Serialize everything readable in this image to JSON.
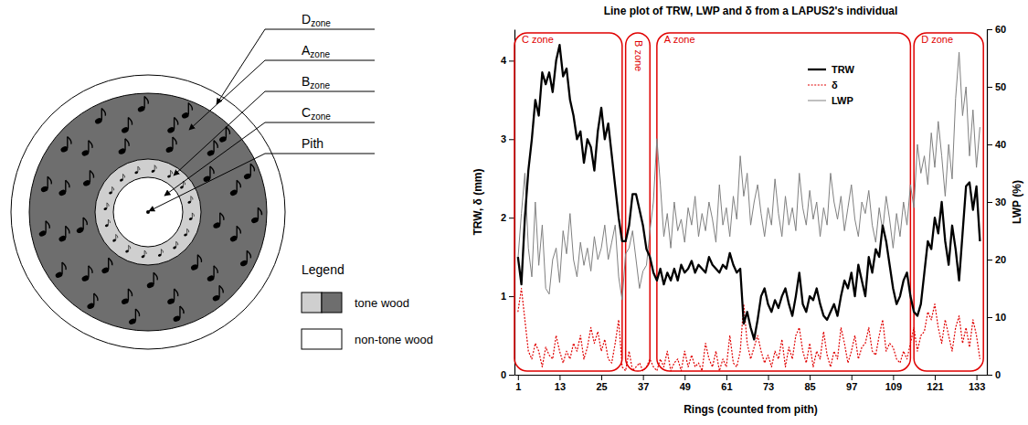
{
  "diagram": {
    "labels": [
      {
        "text": "D",
        "subscript": "zone"
      },
      {
        "text": "A",
        "subscript": "zone"
      },
      {
        "text": "B",
        "subscript": "zone"
      },
      {
        "text": "C",
        "subscript": "zone"
      },
      {
        "text": "Pith"
      }
    ],
    "legend": {
      "title": "Legend",
      "items": [
        "tone wood",
        "non-tone wood"
      ]
    }
  },
  "chart_data": {
    "type": "line",
    "title": "Line plot of TRW, LWP and δ from a LAPUS2's individual",
    "xlabel": "Rings (counted from pith)",
    "ylabel": "TRW, δ (mm)",
    "y2label": "LWP (%)",
    "xlim": [
      0,
      136
    ],
    "xticks": [
      1,
      13,
      25,
      37,
      49,
      61,
      73,
      85,
      97,
      109,
      121,
      133
    ],
    "ylim": [
      0,
      4.4
    ],
    "yticks": [
      0,
      1,
      2,
      3,
      4
    ],
    "y2lim": [
      0,
      60
    ],
    "y2ticks": [
      0,
      10,
      20,
      30,
      40,
      50,
      60
    ],
    "legend": "top-right",
    "annotations": [
      {
        "label": "C zone",
        "from": 0,
        "to": 31
      },
      {
        "label": "B zone",
        "from": 32,
        "to": 39
      },
      {
        "label": "A zone",
        "from": 41,
        "to": 114
      },
      {
        "label": "D zone",
        "from": 115,
        "to": 135
      }
    ],
    "x": [
      1,
      2,
      3,
      4,
      5,
      6,
      7,
      8,
      9,
      10,
      11,
      12,
      13,
      14,
      15,
      16,
      17,
      18,
      19,
      20,
      21,
      22,
      23,
      24,
      25,
      26,
      27,
      28,
      29,
      30,
      31,
      32,
      33,
      34,
      35,
      36,
      37,
      38,
      39,
      40,
      41,
      42,
      43,
      44,
      45,
      46,
      47,
      48,
      49,
      50,
      51,
      52,
      53,
      54,
      55,
      56,
      57,
      58,
      59,
      60,
      61,
      62,
      63,
      64,
      65,
      66,
      67,
      68,
      69,
      70,
      71,
      72,
      73,
      74,
      75,
      76,
      77,
      78,
      79,
      80,
      81,
      82,
      83,
      84,
      85,
      86,
      87,
      88,
      89,
      90,
      91,
      92,
      93,
      94,
      95,
      96,
      97,
      98,
      99,
      100,
      101,
      102,
      103,
      104,
      105,
      106,
      107,
      108,
      109,
      110,
      111,
      112,
      113,
      114,
      115,
      116,
      117,
      118,
      119,
      120,
      121,
      122,
      123,
      124,
      125,
      126,
      127,
      128,
      129,
      130,
      131,
      132,
      133,
      134
    ],
    "series": [
      {
        "name": "TRW",
        "color": "#000000",
        "line_style": "thick",
        "values": [
          1.5,
          1.15,
          2.0,
          2.6,
          3.0,
          3.5,
          3.3,
          3.85,
          3.7,
          3.85,
          3.6,
          4.0,
          4.2,
          3.8,
          3.9,
          3.5,
          3.3,
          3.0,
          3.1,
          2.7,
          3.0,
          2.9,
          2.6,
          3.1,
          3.4,
          3.0,
          3.2,
          2.8,
          2.4,
          2.0,
          1.7,
          1.7,
          1.9,
          2.3,
          2.3,
          2.1,
          1.9,
          1.6,
          1.5,
          1.3,
          1.2,
          1.35,
          1.15,
          1.3,
          1.2,
          1.35,
          1.2,
          1.4,
          1.3,
          1.35,
          1.45,
          1.3,
          1.4,
          1.35,
          1.3,
          1.5,
          1.4,
          1.35,
          1.3,
          1.4,
          1.35,
          1.55,
          1.4,
          1.3,
          1.35,
          0.65,
          0.8,
          0.6,
          0.45,
          0.7,
          1.0,
          1.1,
          0.9,
          0.8,
          0.95,
          0.85,
          1.0,
          1.1,
          0.9,
          0.75,
          1.0,
          1.3,
          0.9,
          0.8,
          1.0,
          0.95,
          1.1,
          0.9,
          0.75,
          0.7,
          0.8,
          0.9,
          0.75,
          1.0,
          1.2,
          1.1,
          1.3,
          1.0,
          1.4,
          1.2,
          1.0,
          1.5,
          1.3,
          1.6,
          1.5,
          1.9,
          1.7,
          1.4,
          1.1,
          0.9,
          1.0,
          1.2,
          1.3,
          1.0,
          0.8,
          0.75,
          0.9,
          1.3,
          1.7,
          1.6,
          2.0,
          1.8,
          2.2,
          1.7,
          1.4,
          1.9,
          1.6,
          1.2,
          1.8,
          2.4,
          2.45,
          2.1,
          2.4,
          1.7
        ]
      },
      {
        "name": "δ",
        "color": "#e00000",
        "line_style": "dotted",
        "values": [
          0.8,
          1.1,
          0.7,
          0.3,
          0.2,
          0.4,
          0.3,
          0.1,
          0.35,
          0.25,
          0.2,
          0.5,
          0.3,
          0.15,
          0.3,
          0.2,
          0.4,
          0.3,
          0.5,
          0.2,
          0.35,
          0.6,
          0.4,
          0.55,
          0.3,
          0.45,
          0.2,
          0.15,
          0.4,
          0.7,
          0.1,
          0.05,
          0.3,
          0.05,
          0.1,
          0.15,
          0.05,
          0.1,
          0.2,
          0.1,
          0.05,
          0.2,
          0.1,
          0.3,
          0.05,
          0.15,
          0.2,
          0.05,
          0.3,
          0.1,
          0.25,
          0.1,
          0.15,
          0.05,
          0.4,
          0.2,
          0.1,
          0.3,
          0.05,
          0.2,
          0.1,
          0.5,
          0.15,
          0.1,
          0.3,
          0.9,
          0.4,
          0.2,
          0.35,
          0.5,
          0.3,
          0.15,
          0.25,
          0.1,
          0.3,
          0.2,
          0.45,
          0.1,
          0.35,
          0.2,
          0.5,
          0.6,
          0.3,
          0.15,
          0.4,
          0.1,
          0.3,
          0.2,
          0.55,
          0.25,
          0.1,
          0.3,
          0.2,
          0.6,
          0.4,
          0.15,
          0.3,
          0.5,
          0.2,
          0.35,
          0.4,
          0.6,
          0.3,
          0.25,
          0.5,
          0.7,
          0.3,
          0.4,
          0.35,
          0.2,
          0.15,
          0.3,
          0.2,
          0.4,
          0.6,
          0.3,
          0.5,
          0.55,
          0.8,
          0.7,
          0.9,
          0.6,
          0.4,
          0.7,
          0.5,
          0.3,
          0.6,
          0.75,
          0.4,
          0.6,
          0.35,
          0.7,
          0.5,
          0.2
        ]
      },
      {
        "name": "LWP",
        "color": "#808080",
        "line_style": "solid",
        "axis": "y2",
        "values": [
          20,
          28,
          35,
          22,
          17,
          30,
          19,
          26,
          15,
          14,
          20,
          22,
          16,
          25,
          21,
          28,
          20,
          17,
          23,
          19,
          22,
          18,
          24,
          20,
          22,
          26,
          20,
          23,
          26,
          17,
          13,
          21,
          22,
          25,
          20,
          15,
          18,
          19,
          25,
          30,
          41,
          33,
          24,
          28,
          22,
          30,
          25,
          27,
          23,
          29,
          26,
          31,
          24,
          28,
          25,
          30,
          27,
          23,
          33,
          26,
          29,
          24,
          31,
          27,
          38,
          31,
          35,
          26,
          30,
          33,
          28,
          24,
          29,
          26,
          34,
          28,
          24,
          31,
          26,
          29,
          25,
          35,
          29,
          26,
          32,
          27,
          30,
          24,
          29,
          26,
          35,
          30,
          27,
          31,
          25,
          29,
          33,
          27,
          24,
          30,
          28,
          32,
          26,
          23,
          29,
          25,
          31,
          27,
          22,
          28,
          24,
          30,
          26,
          33,
          29,
          40,
          35,
          38,
          33,
          42,
          36,
          44,
          38,
          31,
          40,
          34,
          48,
          56,
          45,
          50,
          38,
          46,
          36,
          43
        ]
      }
    ]
  }
}
